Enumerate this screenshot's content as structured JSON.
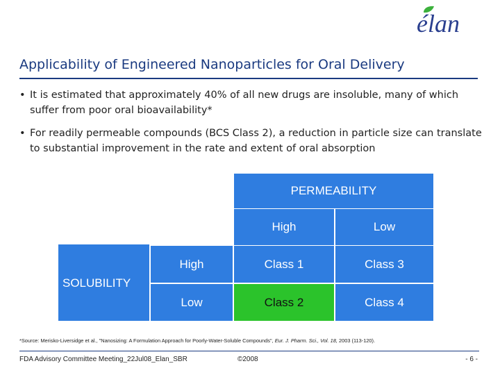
{
  "logo": {
    "text": "élan"
  },
  "title": "Applicability of Engineered Nanoparticles for Oral Delivery",
  "bullets": [
    "It is estimated that approximately 40% of all new drugs are insoluble, many of which suffer from poor oral bioavailability*",
    "For readily permeable compounds (BCS Class 2), a reduction in particle size can translate to substantial improvement in the rate and extent of oral absorption"
  ],
  "bullet_glyph": "•",
  "matrix": {
    "permeability_label": "PERMEABILITY",
    "permeability_levels": [
      "High",
      "Low"
    ],
    "solubility_label": "SOLUBILITY",
    "solubility_levels": [
      "High",
      "Low"
    ],
    "cells": [
      [
        "Class 1",
        "Class 3"
      ],
      [
        "Class 2",
        "Class 4"
      ]
    ],
    "highlighted_cell": "Class 2",
    "colors": {
      "blue": "#2f7de0",
      "green": "#2bc32b"
    }
  },
  "source_note": {
    "prefix": "*Source: Merisko-Liversidge et al., \"Nanosizing: A Formulation Approach for Poorly-Water-Soluble Compounds\", ",
    "journal": "Eur. J. Pharm. Sci., Vol. 18,",
    "suffix": " 2003 (113-120)."
  },
  "footer": {
    "left": "FDA Advisory Committee Meeting_22Jul08_Elan_SBR",
    "middle": "©2008",
    "page": "- 6 -"
  }
}
